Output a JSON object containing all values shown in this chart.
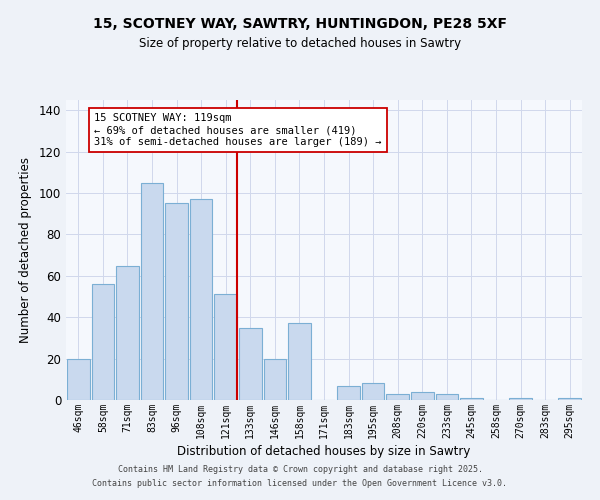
{
  "title_line1": "15, SCOTNEY WAY, SAWTRY, HUNTINGDON, PE28 5XF",
  "title_line2": "Size of property relative to detached houses in Sawtry",
  "xlabel": "Distribution of detached houses by size in Sawtry",
  "ylabel": "Number of detached properties",
  "categories": [
    "46sqm",
    "58sqm",
    "71sqm",
    "83sqm",
    "96sqm",
    "108sqm",
    "121sqm",
    "133sqm",
    "146sqm",
    "158sqm",
    "171sqm",
    "183sqm",
    "195sqm",
    "208sqm",
    "220sqm",
    "233sqm",
    "245sqm",
    "258sqm",
    "270sqm",
    "283sqm",
    "295sqm"
  ],
  "values": [
    20,
    56,
    65,
    105,
    95,
    97,
    51,
    35,
    20,
    37,
    0,
    7,
    8,
    3,
    4,
    3,
    1,
    0,
    1,
    0,
    1
  ],
  "bar_color": "#c9d9ee",
  "bar_edgecolor": "#7bafd4",
  "vline_index": 6,
  "vline_color": "#cc0000",
  "annotation_line1": "15 SCOTNEY WAY: 119sqm",
  "annotation_line2": "← 69% of detached houses are smaller (419)",
  "annotation_line3": "31% of semi-detached houses are larger (189) →",
  "annotation_box_edgecolor": "#cc0000",
  "annotation_box_facecolor": "#ffffff",
  "ylim": [
    0,
    145
  ],
  "yticks": [
    0,
    20,
    40,
    60,
    80,
    100,
    120,
    140
  ],
  "footer_line1": "Contains HM Land Registry data © Crown copyright and database right 2025.",
  "footer_line2": "Contains public sector information licensed under the Open Government Licence v3.0.",
  "bg_color": "#eef2f8",
  "plot_bg_color": "#f5f8fd",
  "grid_color": "#d0d8ec"
}
